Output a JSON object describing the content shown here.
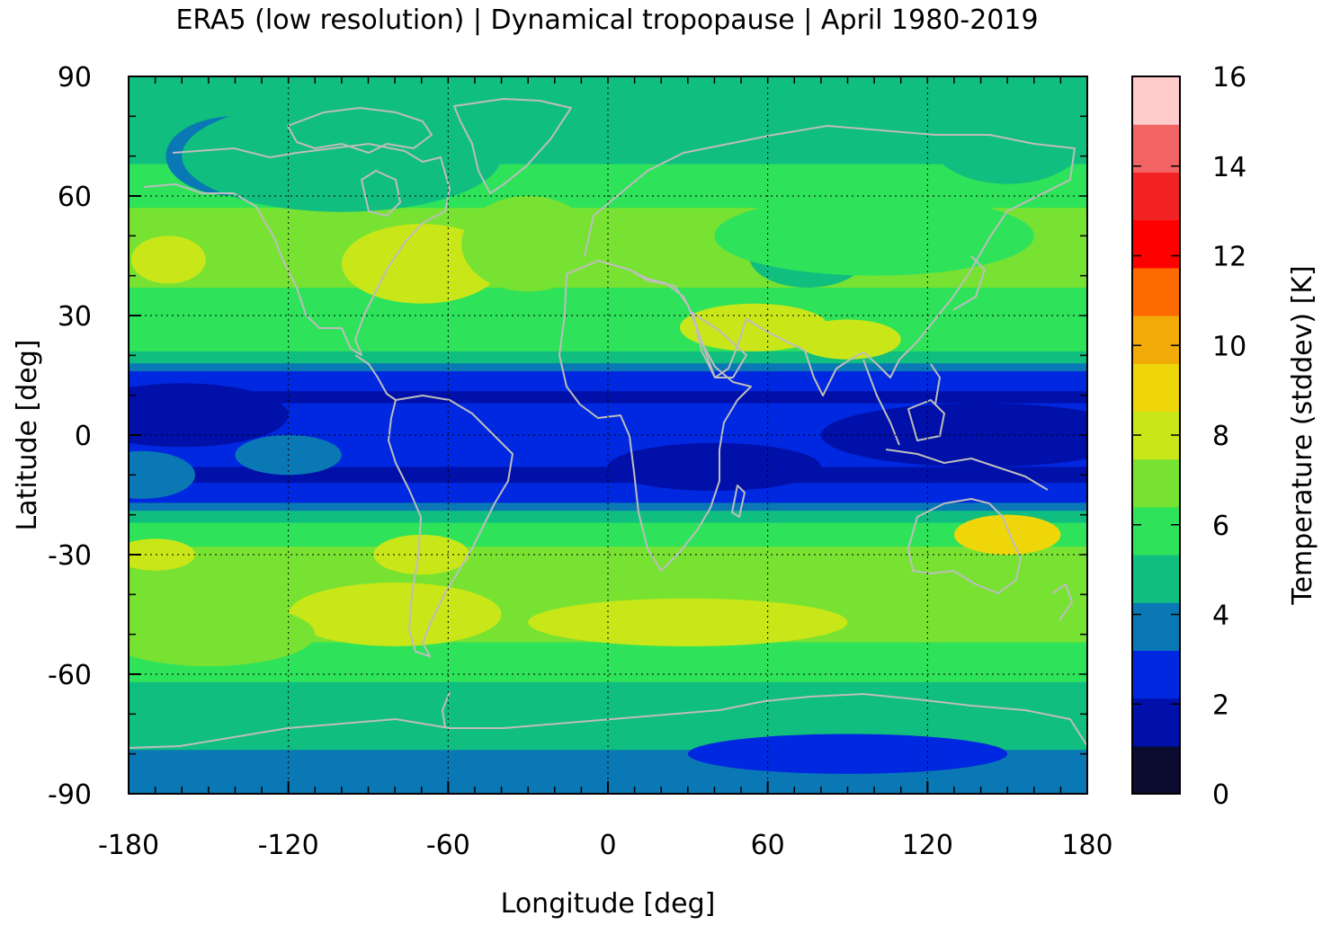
{
  "chart_data": {
    "type": "heatmap",
    "title": "ERA5 (low resolution) | Dynamical tropopause | April 1980-2019",
    "xlabel": "Longitude [deg]",
    "ylabel": "Latitude [deg]",
    "colorbar_label": "Temperature (stddev) [K]",
    "xlim": [
      -180,
      180
    ],
    "ylim": [
      -90,
      90
    ],
    "x_ticks": [
      -180,
      -120,
      -60,
      0,
      60,
      120,
      180
    ],
    "y_ticks": [
      90,
      60,
      30,
      0,
      -30,
      -60,
      -90
    ],
    "x_tick_labels": [
      "-180",
      "-120",
      "-60",
      "0",
      "60",
      "120",
      "180"
    ],
    "y_tick_labels": [
      "90",
      "60",
      "30",
      "0",
      "-30",
      "-60",
      "-90"
    ],
    "grid": true,
    "coastlines": true,
    "colorbar_range": [
      0,
      16
    ],
    "colorbar_ticks": [
      0,
      2,
      4,
      6,
      8,
      10,
      12,
      14,
      16
    ],
    "colorbar_tick_labels": [
      "0",
      "2",
      "4",
      "6",
      "8",
      "10",
      "12",
      "14",
      "16"
    ],
    "colorbar_colors": [
      "#0c0c30",
      "#0010a8",
      "#0028e0",
      "#0a78b4",
      "#10be80",
      "#2ee25a",
      "#78e232",
      "#c8e618",
      "#eed60a",
      "#f2aa08",
      "#ff6a00",
      "#ff0000",
      "#f22222",
      "#f26464",
      "#ffcccc"
    ],
    "zonal_mean_profile": {
      "lat": [
        90,
        80,
        70,
        65,
        60,
        55,
        50,
        45,
        40,
        35,
        30,
        25,
        20,
        18,
        15,
        10,
        5,
        0,
        -5,
        -10,
        -15,
        -18,
        -20,
        -25,
        -30,
        -35,
        -40,
        -45,
        -50,
        -55,
        -60,
        -65,
        -70,
        -75,
        -80,
        -85,
        -90
      ],
      "value": [
        4.5,
        4.8,
        5.2,
        5.6,
        6.0,
        6.6,
        7.0,
        7.2,
        6.8,
        6.2,
        5.8,
        6.0,
        5.2,
        4.0,
        2.8,
        2.0,
        2.4,
        2.6,
        2.4,
        2.0,
        2.4,
        3.6,
        4.8,
        6.0,
        6.6,
        6.6,
        6.8,
        7.0,
        6.6,
        6.0,
        5.6,
        5.0,
        4.8,
        4.6,
        4.2,
        3.8,
        3.5
      ]
    }
  }
}
